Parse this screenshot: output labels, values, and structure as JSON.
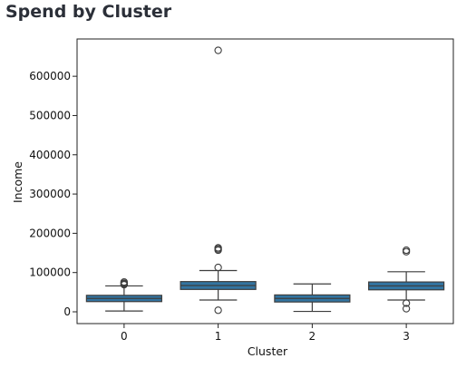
{
  "header": {
    "title": "Spend by Cluster"
  },
  "chart_data": {
    "type": "box",
    "title": "",
    "xlabel": "Cluster",
    "ylabel": "Income",
    "categories": [
      "0",
      "1",
      "2",
      "3"
    ],
    "ylim": [
      -30000,
      695000
    ],
    "yticks": [
      0,
      100000,
      200000,
      300000,
      400000,
      500000,
      600000
    ],
    "ytick_labels": [
      "0",
      "100000",
      "200000",
      "300000",
      "400000",
      "500000",
      "600000"
    ],
    "grid": false,
    "box_color": "#3274a1",
    "boxes": [
      {
        "category": "0",
        "whisker_low": 2000,
        "q1": 26000,
        "median": 34000,
        "q3": 42000,
        "whisker_high": 66000,
        "outliers": [
          69000,
          71000,
          73000,
          76000
        ]
      },
      {
        "category": "1",
        "whisker_low": 30000,
        "q1": 57000,
        "median": 67000,
        "q3": 77000,
        "whisker_high": 105000,
        "outliers": [
          4000,
          113000,
          157000,
          160000,
          163000,
          666000
        ]
      },
      {
        "category": "2",
        "whisker_low": 1000,
        "q1": 25000,
        "median": 34000,
        "q3": 43000,
        "whisker_high": 71000,
        "outliers": []
      },
      {
        "category": "3",
        "whisker_low": 30000,
        "q1": 56000,
        "median": 66000,
        "q3": 76000,
        "whisker_high": 102000,
        "outliers": [
          8000,
          22000,
          153000,
          157000
        ]
      }
    ]
  }
}
